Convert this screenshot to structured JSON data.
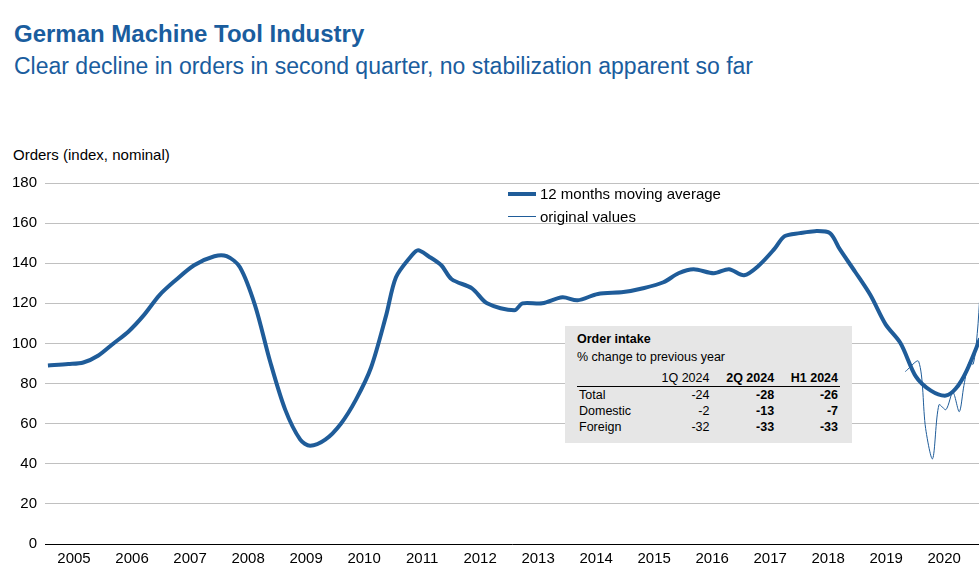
{
  "chart_data": {
    "type": "line",
    "title": "German Machine Tool Industry",
    "subtitle": "Clear decline in orders in second quarter, no stabilization apparent so far",
    "y_label": "Orders (index, nominal)",
    "xlim": [
      2005,
      2021.1
    ],
    "xticks": [
      {
        "value": 2005.5,
        "label": "2005"
      },
      {
        "value": 2006.5,
        "label": "2006"
      },
      {
        "value": 2007.5,
        "label": "2007"
      },
      {
        "value": 2008.5,
        "label": "2008"
      },
      {
        "value": 2009.5,
        "label": "2009"
      },
      {
        "value": 2010.5,
        "label": "2010"
      },
      {
        "value": 2011.5,
        "label": "2011"
      },
      {
        "value": 2012.5,
        "label": "2012"
      },
      {
        "value": 2013.5,
        "label": "2013"
      },
      {
        "value": 2014.5,
        "label": "2014"
      },
      {
        "value": 2015.5,
        "label": "2015"
      },
      {
        "value": 2016.5,
        "label": "2016"
      },
      {
        "value": 2017.5,
        "label": "2017"
      },
      {
        "value": 2018.5,
        "label": "2018"
      },
      {
        "value": 2019.5,
        "label": "2019"
      },
      {
        "value": 2020.5,
        "label": "2020"
      }
    ],
    "ylim": [
      0,
      180
    ],
    "yticks": [
      0,
      20,
      40,
      60,
      80,
      100,
      120,
      140,
      160,
      180
    ],
    "grid": "y",
    "legend": "top",
    "series": [
      {
        "name": "12 months moving average",
        "color": "#1f5c99",
        "marker": "none",
        "line_style": "solid",
        "x": [
          2005.05,
          2005.4,
          2005.66,
          2005.92,
          2006.18,
          2006.44,
          2006.7,
          2006.97,
          2007.23,
          2007.57,
          2007.92,
          2008.13,
          2008.36,
          2008.62,
          2008.88,
          2009.14,
          2009.4,
          2009.57,
          2009.83,
          2010.1,
          2010.36,
          2010.62,
          2010.88,
          2011.05,
          2011.31,
          2011.43,
          2011.61,
          2011.83,
          2012.01,
          2012.36,
          2012.62,
          2013.09,
          2013.23,
          2013.57,
          2013.92,
          2014.18,
          2014.53,
          2014.97,
          2015.31,
          2015.66,
          2015.92,
          2016.18,
          2016.53,
          2016.79,
          2017.05,
          2017.31,
          2017.57,
          2017.75,
          2018.01,
          2018.27,
          2018.53,
          2018.7,
          2018.97,
          2019.23,
          2019.49,
          2019.75,
          2020.01,
          2020.27,
          2020.53,
          2020.7,
          2020.88,
          2021.12
        ],
        "values": [
          89,
          89.7,
          90.5,
          94,
          100,
          106,
          114,
          124,
          131,
          139,
          143.5,
          143.5,
          138,
          119,
          91,
          67,
          52,
          49,
          52,
          60,
          72,
          88,
          114,
          133,
          143.5,
          146.5,
          143.5,
          139,
          132,
          127.5,
          120,
          116.5,
          120,
          120,
          123,
          121.5,
          124.7,
          125.6,
          127.5,
          130.5,
          135,
          137,
          135,
          137,
          134,
          139,
          147,
          153.5,
          155,
          156,
          155,
          147,
          135.5,
          124,
          109.5,
          100,
          83.6,
          76.5,
          74,
          77.5,
          86,
          102.5
        ]
      },
      {
        "name": "original values",
        "color": "#1f5c99",
        "marker": "none",
        "line_style": "solid",
        "x": [
          2019.83,
          2020.06,
          2020.18,
          2020.3,
          2020.41,
          2020.53,
          2020.65,
          2020.76,
          2020.84,
          2020.93,
          2021.0,
          2021.07,
          2021.12
        ],
        "values": [
          86,
          91,
          57.6,
          42.5,
          69.4,
          67,
          75.6,
          66,
          79,
          90.7,
          89.7,
          105,
          126
        ]
      }
    ],
    "table": {
      "title": "Order intake",
      "subtitle": "% change to previous year",
      "columns": [
        "1Q 2024",
        "2Q 2024",
        "H1 2024"
      ],
      "rows": [
        {
          "label": "Total",
          "values": [
            -24,
            -28,
            -26
          ]
        },
        {
          "label": "Domestic",
          "values": [
            -2,
            -13,
            -7
          ]
        },
        {
          "label": "Foreign",
          "values": [
            -32,
            -33,
            -33
          ]
        }
      ]
    }
  }
}
